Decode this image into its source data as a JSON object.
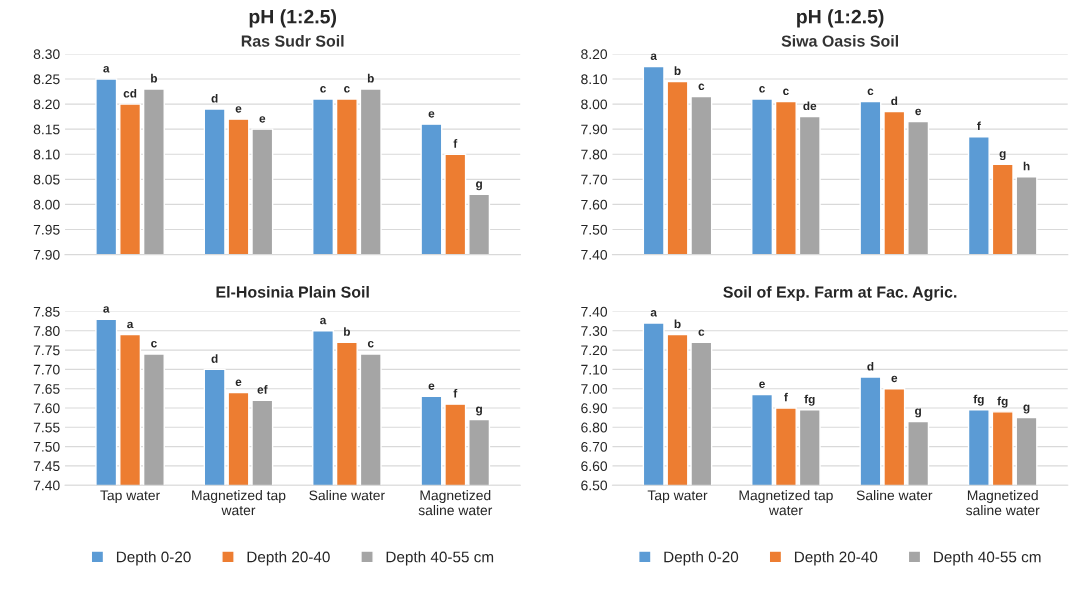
{
  "chart_data": [
    {
      "type": "bar",
      "title": "pH (1:2.5)",
      "subtitle": "Ras Sudr Soil",
      "categories": [
        null,
        null,
        null,
        null
      ],
      "series": [
        {
          "color": "#5b9bd5",
          "values": [
            8.25,
            8.19,
            8.21,
            8.16
          ],
          "value_labels": [
            "a",
            "d",
            "c",
            "e"
          ]
        },
        {
          "color": "#ed7d31",
          "values": [
            8.2,
            8.17,
            8.21,
            8.1
          ],
          "value_labels": [
            "cd",
            "e",
            "c",
            "f"
          ]
        },
        {
          "color": "#a5a5a5",
          "values": [
            8.23,
            8.15,
            8.23,
            8.02
          ],
          "value_labels": [
            "b",
            "e",
            "b",
            "g"
          ]
        }
      ],
      "ylim": [
        7.9,
        8.3
      ],
      "yticks": [
        {
          "value": 7.9,
          "label": "7.90"
        },
        {
          "value": 7.95,
          "label": "7.95"
        },
        {
          "value": 8.0,
          "label": "8.00"
        },
        {
          "value": 8.05,
          "label": "8.05"
        },
        {
          "value": 8.1,
          "label": "8.10"
        },
        {
          "value": 8.15,
          "label": "8.15"
        },
        {
          "value": 8.2,
          "label": "8.20"
        },
        {
          "value": 8.25,
          "label": "8.25"
        },
        {
          "value": 8.3,
          "label": "8.30"
        }
      ],
      "grid": "y",
      "tick_labels": "y"
    },
    {
      "type": "bar",
      "title": "pH (1:2.5)",
      "subtitle": "Siwa Oasis Soil",
      "categories": [
        null,
        null,
        null,
        null
      ],
      "series": [
        {
          "color": "#5b9bd5",
          "values": [
            8.15,
            8.02,
            8.01,
            7.87
          ],
          "value_labels": [
            "a",
            "c",
            "c",
            "f"
          ]
        },
        {
          "color": "#ed7d31",
          "values": [
            8.09,
            8.01,
            7.97,
            7.76
          ],
          "value_labels": [
            "b",
            "c",
            "d",
            "g"
          ]
        },
        {
          "color": "#a5a5a5",
          "values": [
            8.03,
            7.95,
            7.93,
            7.71
          ],
          "value_labels": [
            "c",
            "de",
            "e",
            "h"
          ]
        }
      ],
      "ylim": [
        7.4,
        8.2
      ],
      "yticks": [
        {
          "value": 7.4,
          "label": "7.40"
        },
        {
          "value": 7.5,
          "label": "7.50"
        },
        {
          "value": 7.6,
          "label": "7.60"
        },
        {
          "value": 7.7,
          "label": "7.70"
        },
        {
          "value": 7.8,
          "label": "7.80"
        },
        {
          "value": 7.9,
          "label": "7.90"
        },
        {
          "value": 8.0,
          "label": "8.00"
        },
        {
          "value": 8.1,
          "label": "8.10"
        },
        {
          "value": 8.2,
          "label": "8.20"
        }
      ],
      "grid": "y",
      "tick_labels": "y"
    },
    {
      "type": "bar",
      "title": "El-Hosinia Plain Soil",
      "categories": [
        "Tap water",
        "Magnetized tap\nwater",
        "Saline water",
        "Magnetized\nsaline water"
      ],
      "series": [
        {
          "name": "Depth 0-20",
          "color": "#5b9bd5",
          "values": [
            7.83,
            7.7,
            7.8,
            7.63
          ],
          "value_labels": [
            "a",
            "d",
            "a",
            "e"
          ]
        },
        {
          "name": "Depth 20-40",
          "color": "#ed7d31",
          "values": [
            7.79,
            7.64,
            7.77,
            7.61
          ],
          "value_labels": [
            "a",
            "e",
            "b",
            "f"
          ]
        },
        {
          "name": "Depth 40-55 cm",
          "color": "#a5a5a5",
          "values": [
            7.74,
            7.62,
            7.74,
            7.57
          ],
          "value_labels": [
            "c",
            "ef",
            "c",
            "g"
          ]
        }
      ],
      "ylim": [
        7.4,
        7.85
      ],
      "yticks": [
        {
          "value": 7.4,
          "label": "7.40"
        },
        {
          "value": 7.45,
          "label": "7.45"
        },
        {
          "value": 7.5,
          "label": "7.50"
        },
        {
          "value": 7.55,
          "label": "7.55"
        },
        {
          "value": 7.6,
          "label": "7.60"
        },
        {
          "value": 7.65,
          "label": "7.65"
        },
        {
          "value": 7.7,
          "label": "7.70"
        },
        {
          "value": 7.75,
          "label": "7.75"
        },
        {
          "value": 7.8,
          "label": "7.80"
        },
        {
          "value": 7.85,
          "label": "7.85"
        }
      ],
      "grid": "y",
      "legend": "bottom"
    },
    {
      "type": "bar",
      "title": "Soil of Exp. Farm at Fac. Agric.",
      "categories": [
        "Tap water",
        "Magnetized tap\nwater",
        "Saline water",
        "Magnetized\nsaline water"
      ],
      "series": [
        {
          "name": "Depth 0-20",
          "color": "#5b9bd5",
          "values": [
            7.34,
            6.97,
            7.06,
            6.89
          ],
          "value_labels": [
            "a",
            "e",
            "d",
            "fg"
          ]
        },
        {
          "name": "Depth 20-40",
          "color": "#ed7d31",
          "values": [
            7.28,
            6.9,
            7.0,
            6.88
          ],
          "value_labels": [
            "b",
            "f",
            "e",
            "fg"
          ]
        },
        {
          "name": "Depth 40-55 cm",
          "color": "#a5a5a5",
          "values": [
            7.24,
            6.89,
            6.83,
            6.85
          ],
          "value_labels": [
            "c",
            "fg",
            "g",
            "g"
          ]
        }
      ],
      "ylim": [
        6.5,
        7.4
      ],
      "yticks": [
        {
          "value": 6.5,
          "label": "6.50"
        },
        {
          "value": 6.6,
          "label": "6.60"
        },
        {
          "value": 6.7,
          "label": "6.70"
        },
        {
          "value": 6.8,
          "label": "6.80"
        },
        {
          "value": 6.9,
          "label": "6.90"
        },
        {
          "value": 7.0,
          "label": "7.00"
        },
        {
          "value": 7.1,
          "label": "7.10"
        },
        {
          "value": 7.2,
          "label": "7.20"
        },
        {
          "value": 7.3,
          "label": "7.30"
        },
        {
          "value": 7.4,
          "label": "7.40"
        }
      ],
      "grid": "y",
      "legend": "bottom"
    }
  ]
}
